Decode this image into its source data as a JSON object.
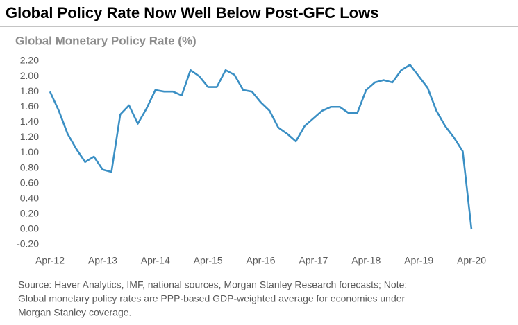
{
  "chart_data": {
    "type": "line",
    "title": "Global Policy Rate Now Well Below Post-GFC Lows",
    "subtitle": "Global Monetary Policy Rate (%)",
    "categories": [
      "Apr-12",
      null,
      null,
      null,
      null,
      null,
      "Apr-13",
      null,
      null,
      null,
      null,
      null,
      "Apr-14",
      null,
      null,
      null,
      null,
      null,
      "Apr-15",
      null,
      null,
      null,
      null,
      null,
      "Apr-16",
      null,
      null,
      null,
      null,
      null,
      "Apr-17",
      null,
      null,
      null,
      null,
      null,
      "Apr-18",
      null,
      null,
      null,
      null,
      null,
      "Apr-19",
      null,
      null,
      null,
      null,
      null,
      "Apr-20"
    ],
    "series": [
      {
        "name": "Global Monetary Policy Rate",
        "color": "#3a8fc4",
        "values": [
          1.8,
          1.55,
          1.25,
          1.05,
          0.88,
          0.95,
          0.78,
          0.75,
          1.5,
          1.62,
          1.38,
          1.58,
          1.82,
          1.8,
          1.8,
          1.75,
          2.08,
          2.0,
          1.86,
          1.86,
          2.08,
          2.02,
          1.82,
          1.8,
          1.66,
          1.55,
          1.33,
          1.25,
          1.15,
          1.35,
          1.45,
          1.55,
          1.6,
          1.6,
          1.52,
          1.52,
          1.82,
          1.92,
          1.95,
          1.92,
          2.08,
          2.15,
          2.0,
          1.85,
          1.55,
          1.35,
          1.2,
          1.02,
          0.0
        ]
      }
    ],
    "ylim": [
      -0.2,
      2.2
    ],
    "yticks": [
      {
        "value": -0.2,
        "label": "-0.20"
      },
      {
        "value": 0,
        "label": "0.00"
      },
      {
        "value": 0.2,
        "label": "0.20"
      },
      {
        "value": 0.4,
        "label": "0.40"
      },
      {
        "value": 0.6,
        "label": "0.60"
      },
      {
        "value": 0.8,
        "label": "0.80"
      },
      {
        "value": 1,
        "label": "1.00"
      },
      {
        "value": 1.2,
        "label": "1.20"
      },
      {
        "value": 1.4,
        "label": "1.40"
      },
      {
        "value": 1.6,
        "label": "1.60"
      },
      {
        "value": 1.8,
        "label": "1.80"
      },
      {
        "value": 2,
        "label": "2.00"
      },
      {
        "value": 2.2,
        "label": "2.20"
      }
    ],
    "grid": false,
    "source": [
      "Source: Haver Analytics, IMF, national sources, Morgan Stanley Research forecasts; Note:",
      "Global monetary policy rates are PPP-based GDP-weighted average for economies under",
      "Morgan Stanley coverage."
    ]
  }
}
